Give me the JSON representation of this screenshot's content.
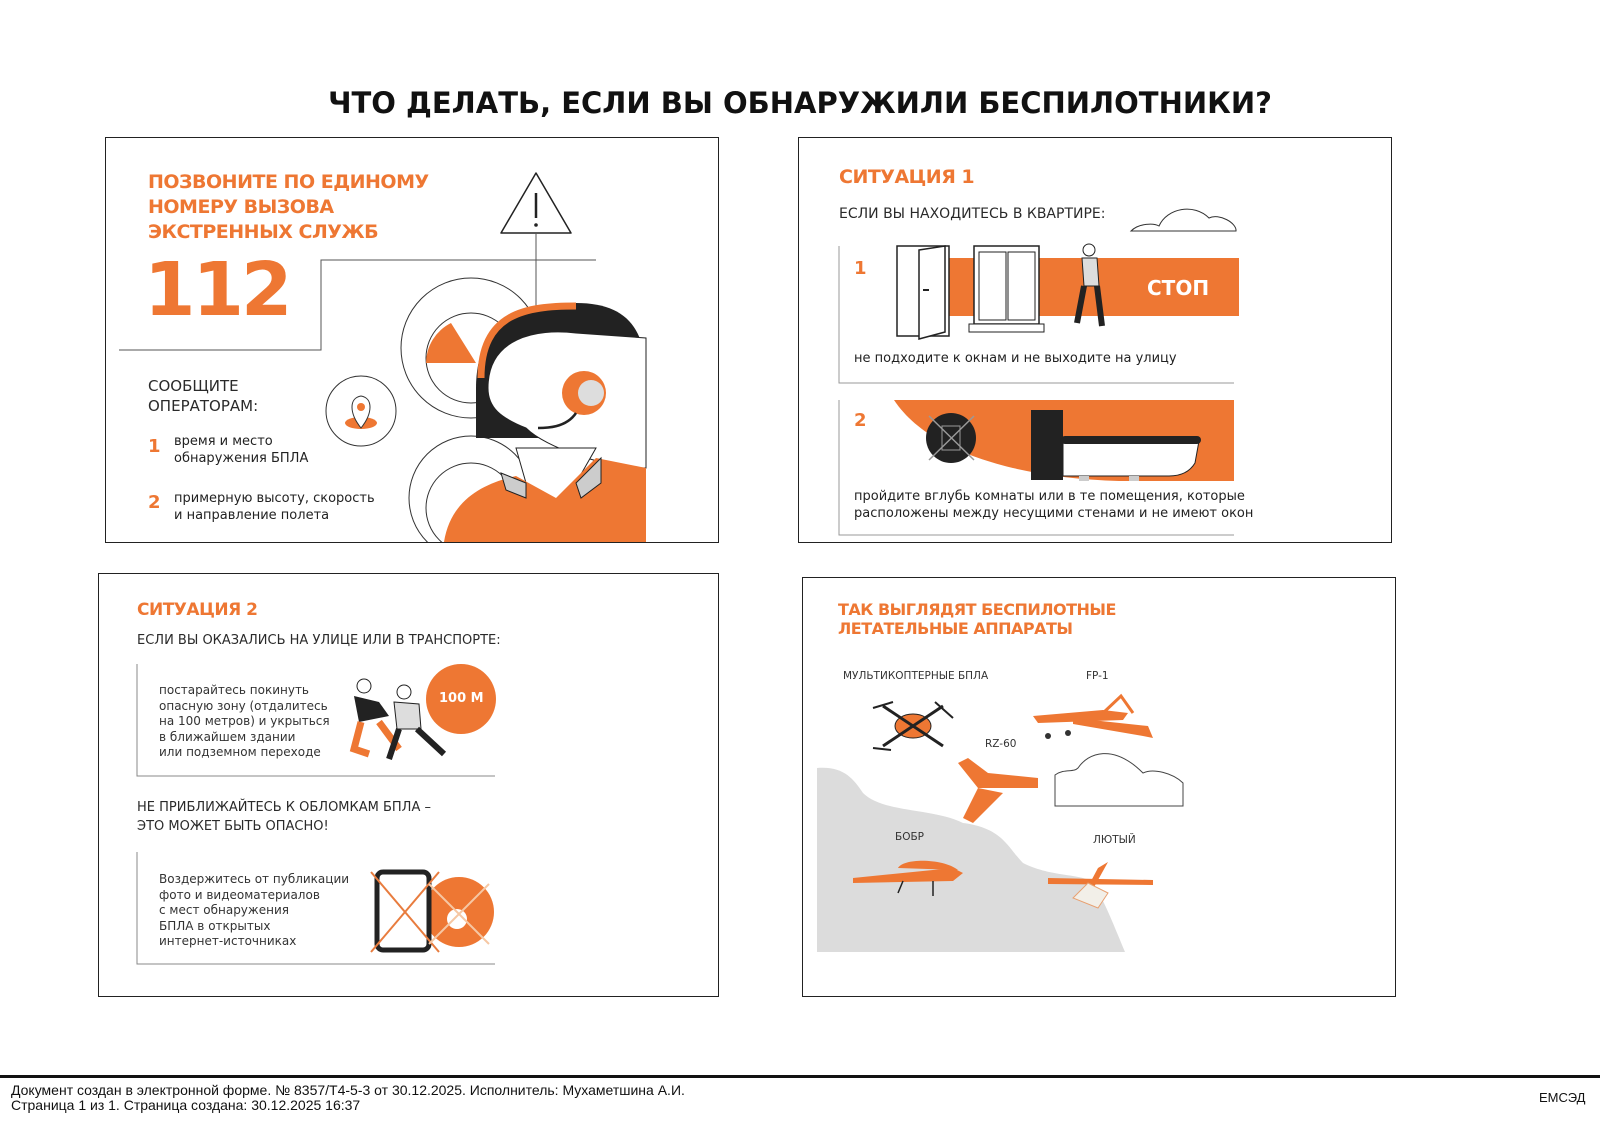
{
  "page_title": "ЧТО ДЕЛАТЬ, ЕСЛИ ВЫ ОБНАРУЖИЛИ БЕСПИЛОТНИКИ?",
  "colors": {
    "accent": "#ee7733",
    "dark": "#222222",
    "grey": "#dcdcdc"
  },
  "panel_call": {
    "heading": [
      "ПОЗВОНИТЕ ПО ЕДИНОМУ",
      "НОМЕРУ ВЫЗОВА",
      "ЭКСТРЕННЫХ СЛУЖБ"
    ],
    "number": "112",
    "report_heading": [
      "СООБЩИТЕ",
      "ОПЕРАТОРАМ:"
    ],
    "items": [
      {
        "num": "1",
        "lines": [
          "время и место",
          "обнаружения БПЛА"
        ]
      },
      {
        "num": "2",
        "lines": [
          "примерную высоту, скорость",
          "и направление полета"
        ]
      }
    ],
    "icons": [
      "warning-triangle-icon",
      "location-pin-icon",
      "operator-headset-illustration"
    ]
  },
  "panel_situation1": {
    "heading": "СИТУАЦИЯ 1",
    "subheading": "ЕСЛИ ВЫ НАХОДИТЕСЬ В КВАРТИРЕ:",
    "step1": {
      "num": "1",
      "badge": "СТОП",
      "text": "не подходите к окнам и не выходите на улицу"
    },
    "step2": {
      "num": "2",
      "lines": [
        "пройдите вглубь комнаты или в те помещения, которые",
        "расположены между несущими стенами и не имеют окон"
      ]
    }
  },
  "panel_situation2": {
    "heading": "СИТУАЦИЯ 2",
    "subheading": "ЕСЛИ ВЫ ОКАЗАЛИСЬ НА УЛИЦЕ ИЛИ В ТРАНСПОРТЕ:",
    "block1": {
      "lines": [
        "постарайтесь покинуть",
        "опасную зону (отдалитесь",
        "на 100 метров) и укрыться",
        "в ближайшем здании",
        "или подземном переходе"
      ],
      "badge": "100 М"
    },
    "warning": [
      "НЕ ПРИБЛИЖАЙТЕСЬ К ОБЛОМКАМ БПЛА –",
      "ЭТО МОЖЕТ БЫТЬ ОПАСНО!"
    ],
    "block2": {
      "lines": [
        "Воздержитесь от публикации",
        "фото и видеоматериалов",
        "с мест обнаружения",
        "БПЛА в открытых",
        "интернет-источниках"
      ]
    }
  },
  "panel_drones": {
    "heading": [
      "ТАК ВЫГЛЯДЯТ БЕСПИЛОТНЫЕ",
      "ЛЕТАТЕЛЬНЫЕ АППАРАТЫ"
    ],
    "labels": {
      "multi": "МУЛЬТИКОПТЕРНЫЕ БПЛА",
      "fp1": "FP-1",
      "rz60": "RZ-60",
      "bobr": "БОБР",
      "lyuty": "ЛЮТЫЙ"
    }
  },
  "footer": {
    "line1": "Документ создан в электронной форме. № 8357/Т4-5-3 от 30.12.2025. Исполнитель: Мухаметшина А.И.",
    "line2": "Страница 1 из 1. Страница создана: 30.12.2025 16:37",
    "system": "ЕМСЭД"
  }
}
